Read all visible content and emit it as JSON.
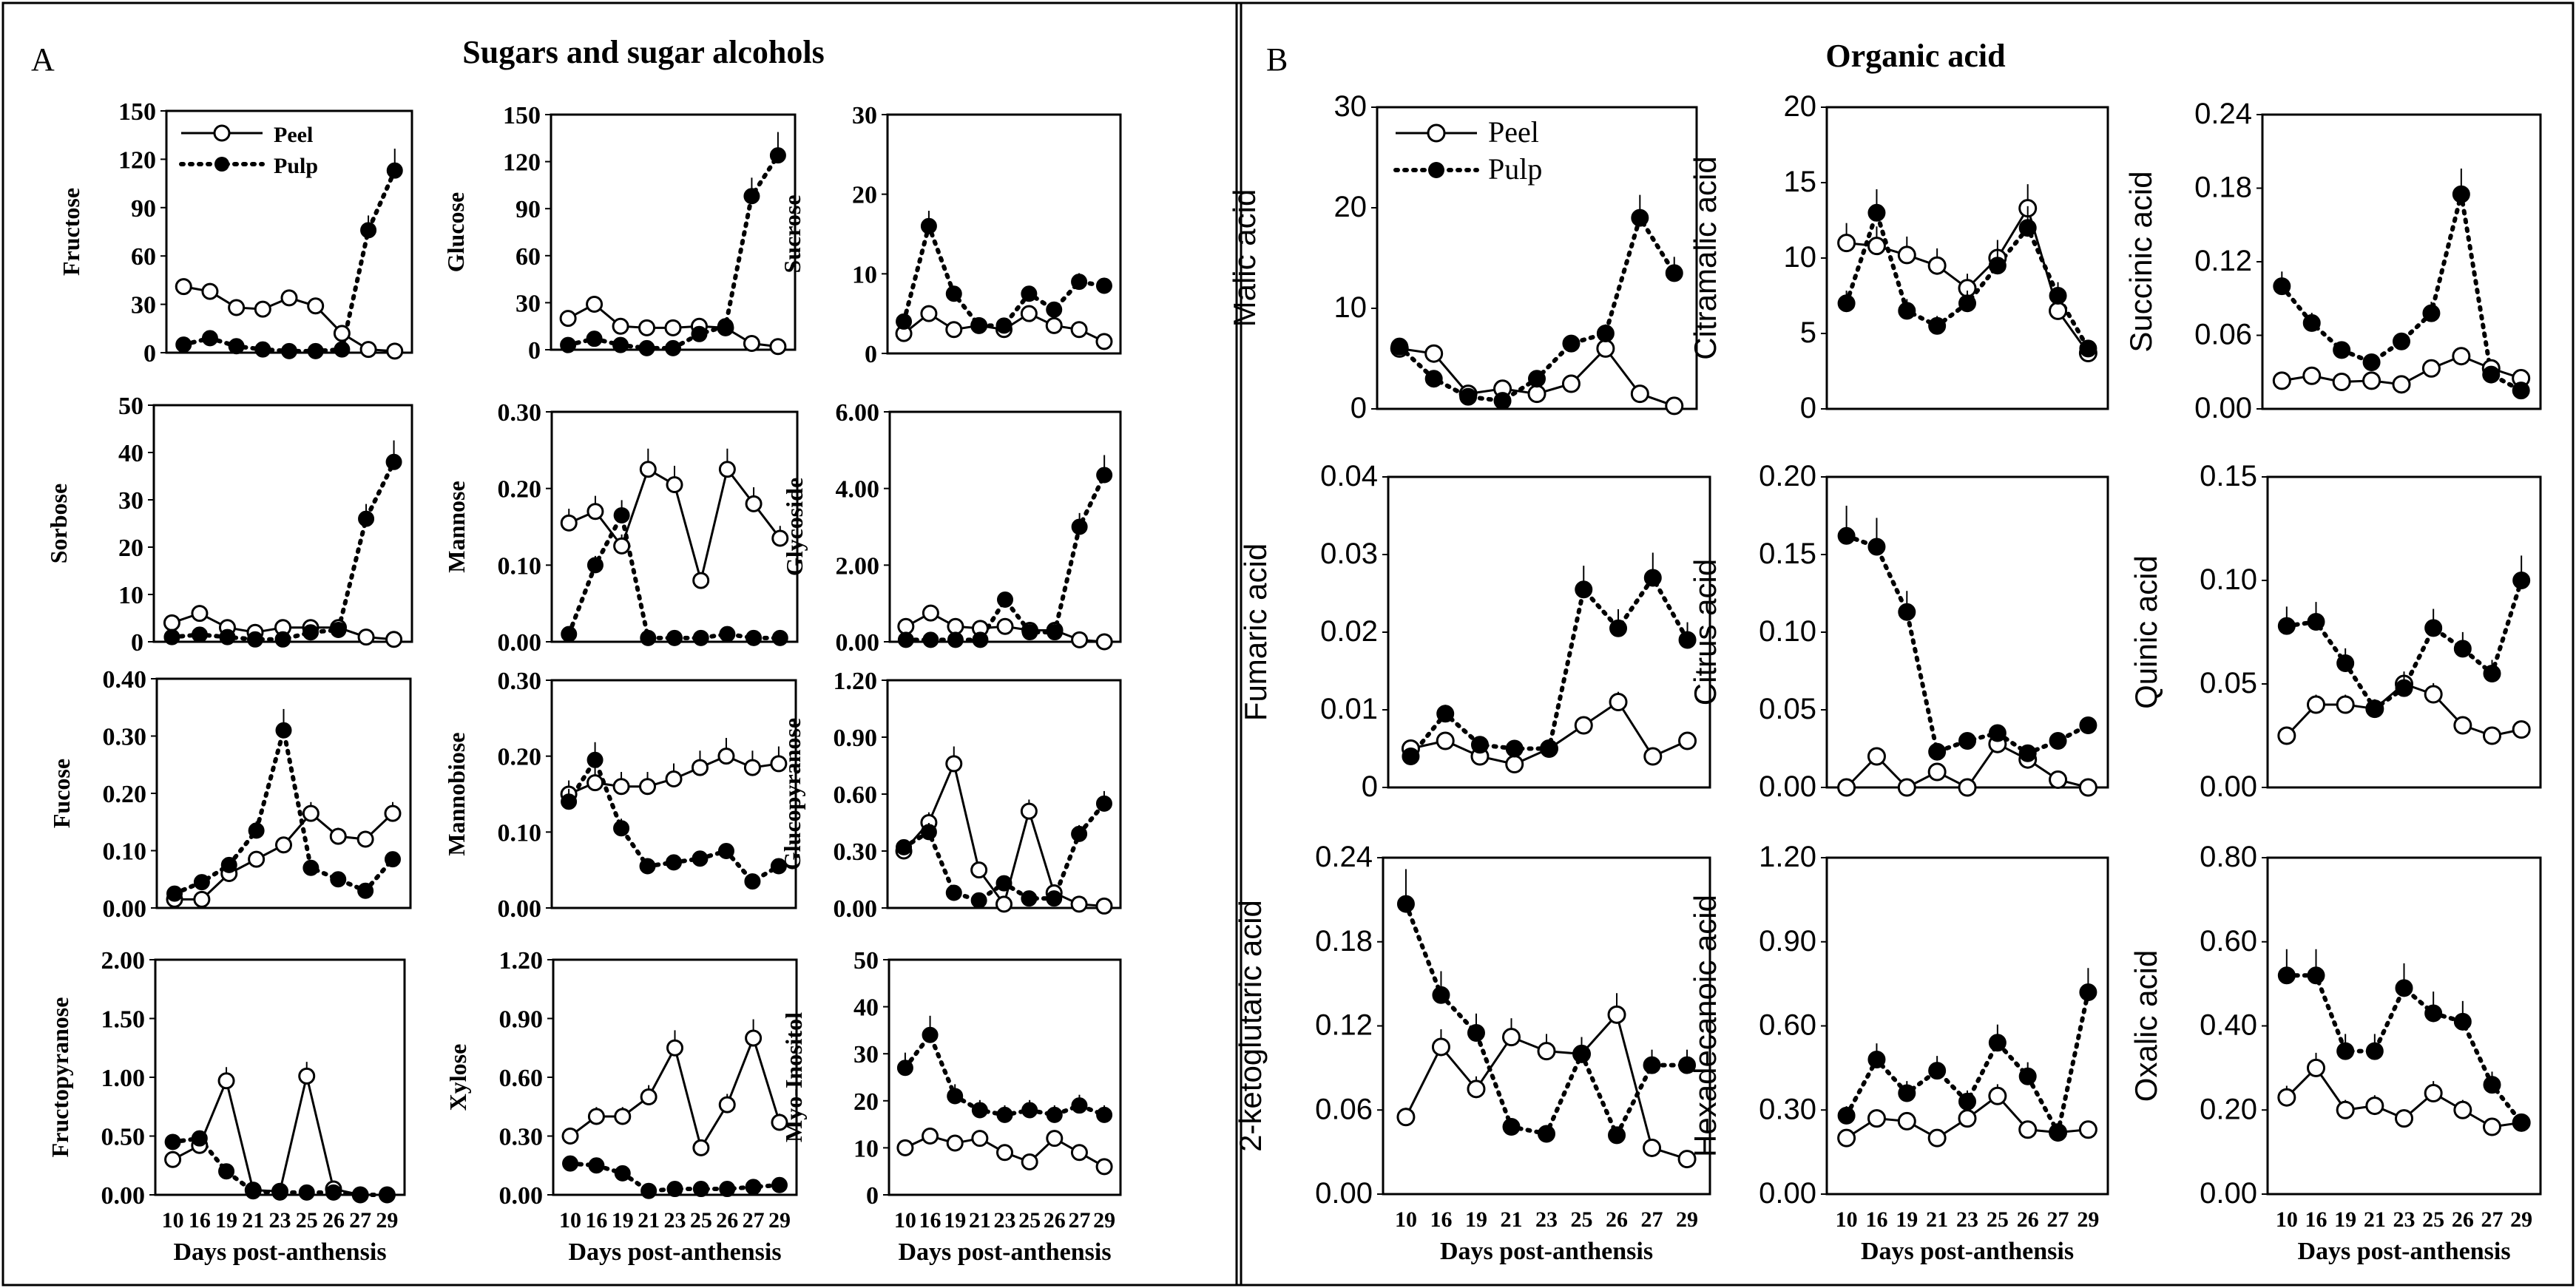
{
  "panels": [
    {
      "letter": "A",
      "title": "Sugars and sugar alcohols"
    },
    {
      "letter": "B",
      "title": "Organic acid"
    }
  ],
  "legend": {
    "series": [
      "Peel",
      "Pulp"
    ]
  },
  "xlabel": "Days post-anthensis",
  "colors": {
    "line": "#000000",
    "peel_fill": "#ffffff",
    "pulp_fill": "#000000"
  },
  "chart_data": [
    {
      "type": "line",
      "name": "Fructose",
      "ylabel": "Fructose",
      "panel": "A",
      "ylim": [
        0,
        150
      ],
      "yticks": [
        "0",
        "30",
        "60",
        "90",
        "120",
        "150"
      ],
      "categories": [
        "10",
        "16",
        "19",
        "21",
        "23",
        "25",
        "26",
        "27",
        "29"
      ],
      "series": [
        {
          "name": "Peel",
          "values": [
            41,
            38,
            28,
            27,
            34,
            29,
            12,
            2,
            1
          ],
          "err": [
            2,
            2,
            1,
            1,
            4,
            3,
            8,
            1,
            1
          ]
        },
        {
          "name": "Pulp",
          "values": [
            5,
            9,
            4,
            2,
            1,
            1,
            2,
            76,
            113
          ]
        }
      ],
      "pulp_err": [
        1,
        4,
        1,
        1,
        1,
        1,
        1,
        8,
        16
      ]
    },
    {
      "type": "line",
      "name": "Glucose",
      "ylabel": "Glucose",
      "panel": "A",
      "ylim": [
        0,
        150
      ],
      "yticks": [
        "0",
        "30",
        "60",
        "90",
        "120",
        "150"
      ],
      "categories": [
        "10",
        "16",
        "19",
        "21",
        "23",
        "25",
        "26",
        "27",
        "29"
      ],
      "series": [
        {
          "name": "Peel",
          "values": [
            20,
            29,
            15,
            14,
            14,
            15,
            14,
            4,
            2
          ]
        },
        {
          "name": "Pulp",
          "values": [
            3,
            7,
            3,
            1,
            1,
            10,
            15,
            98,
            124
          ]
        }
      ]
    },
    {
      "type": "line",
      "name": "Sucrose",
      "ylabel": "Sucrose",
      "panel": "A",
      "ylim": [
        0,
        30
      ],
      "yticks": [
        "0",
        "10",
        "20",
        "30"
      ],
      "categories": [
        "10",
        "16",
        "19",
        "21",
        "23",
        "25",
        "26",
        "27",
        "29"
      ],
      "series": [
        {
          "name": "Peel",
          "values": [
            2.5,
            5,
            3,
            3.5,
            3,
            5,
            3.5,
            3,
            1.5
          ]
        },
        {
          "name": "Pulp",
          "values": [
            4,
            16,
            7.5,
            3.5,
            3.5,
            7.5,
            5.5,
            9,
            8.5
          ]
        }
      ]
    },
    {
      "type": "line",
      "name": "Sorbose",
      "ylabel": "Sorbose",
      "panel": "A",
      "ylim": [
        0,
        50
      ],
      "yticks": [
        "0",
        "10",
        "20",
        "30",
        "40",
        "50"
      ],
      "categories": [
        "10",
        "16",
        "19",
        "21",
        "23",
        "25",
        "26",
        "27",
        "29"
      ],
      "series": [
        {
          "name": "Peel",
          "values": [
            4,
            6,
            3,
            2,
            3,
            3,
            3,
            1,
            0.5
          ]
        },
        {
          "name": "Pulp",
          "values": [
            1,
            1.5,
            1,
            0.5,
            0.5,
            2,
            2.5,
            26,
            38
          ]
        }
      ]
    },
    {
      "type": "line",
      "name": "Mannose",
      "ylabel": "Mannose",
      "panel": "A",
      "ylim": [
        0,
        0.3
      ],
      "yticks": [
        "0.00",
        "0.10",
        "0.20",
        "0.30"
      ],
      "categories": [
        "10",
        "16",
        "19",
        "21",
        "23",
        "25",
        "26",
        "27",
        "29"
      ],
      "series": [
        {
          "name": "Peel",
          "values": [
            0.155,
            0.17,
            0.125,
            0.225,
            0.205,
            0.08,
            0.225,
            0.18,
            0.135
          ]
        },
        {
          "name": "Pulp",
          "values": [
            0.01,
            0.1,
            0.165,
            0.005,
            0.005,
            0.005,
            0.01,
            0.005,
            0.005
          ]
        }
      ]
    },
    {
      "type": "line",
      "name": "Glycoside",
      "ylabel": "Glycoside",
      "panel": "A",
      "ylim": [
        0,
        6
      ],
      "yticks": [
        "0.00",
        "2.00",
        "4.00",
        "6.00"
      ],
      "categories": [
        "10",
        "16",
        "19",
        "21",
        "23",
        "25",
        "26",
        "27",
        "29"
      ],
      "series": [
        {
          "name": "Peel",
          "values": [
            0.4,
            0.75,
            0.4,
            0.35,
            0.4,
            0.3,
            0.3,
            0.05,
            0.0
          ]
        },
        {
          "name": "Pulp",
          "values": [
            0.05,
            0.05,
            0.05,
            0.05,
            1.1,
            0.25,
            0.25,
            3.0,
            4.35
          ]
        }
      ]
    },
    {
      "type": "line",
      "name": "Fucose",
      "ylabel": "Fucose",
      "panel": "A",
      "ylim": [
        0,
        0.4
      ],
      "yticks": [
        "0.00",
        "0.10",
        "0.20",
        "0.30",
        "0.40"
      ],
      "categories": [
        "10",
        "16",
        "19",
        "21",
        "23",
        "25",
        "26",
        "27",
        "29"
      ],
      "series": [
        {
          "name": "Peel",
          "values": [
            0.015,
            0.015,
            0.06,
            0.085,
            0.11,
            0.165,
            0.125,
            0.12,
            0.165
          ]
        },
        {
          "name": "Pulp",
          "values": [
            0.025,
            0.045,
            0.075,
            0.135,
            0.31,
            0.07,
            0.05,
            0.03,
            0.085
          ]
        }
      ]
    },
    {
      "type": "line",
      "name": "Mannobiose",
      "ylabel": "Mannobiose",
      "panel": "A",
      "ylim": [
        0,
        0.3
      ],
      "yticks": [
        "0.00",
        "0.10",
        "0.20",
        "0.30"
      ],
      "categories": [
        "10",
        "16",
        "19",
        "21",
        "23",
        "25",
        "26",
        "27",
        "29"
      ],
      "series": [
        {
          "name": "Peel",
          "values": [
            0.15,
            0.165,
            0.16,
            0.16,
            0.17,
            0.185,
            0.2,
            0.185,
            0.19
          ]
        },
        {
          "name": "Pulp",
          "values": [
            0.14,
            0.195,
            0.105,
            0.055,
            0.06,
            0.065,
            0.075,
            0.035,
            0.055
          ]
        }
      ]
    },
    {
      "type": "line",
      "name": "Glucopyranose",
      "ylabel": "Glucopyranose",
      "panel": "A",
      "ylim": [
        0,
        1.2
      ],
      "yticks": [
        "0.00",
        "0.30",
        "0.60",
        "0.90",
        "1.20"
      ],
      "categories": [
        "10",
        "16",
        "19",
        "21",
        "23",
        "25",
        "26",
        "27",
        "29"
      ],
      "series": [
        {
          "name": "Peel",
          "values": [
            0.3,
            0.45,
            0.76,
            0.2,
            0.02,
            0.51,
            0.08,
            0.02,
            0.01
          ]
        },
        {
          "name": "Pulp",
          "values": [
            0.32,
            0.4,
            0.08,
            0.04,
            0.13,
            0.05,
            0.05,
            0.39,
            0.55
          ]
        }
      ]
    },
    {
      "type": "line",
      "name": "Fructopyranose",
      "ylabel": "Fructopyranose",
      "panel": "A",
      "ylim": [
        0,
        2
      ],
      "yticks": [
        "0.00",
        "0.50",
        "1.00",
        "1.50",
        "2.00"
      ],
      "categories": [
        "10",
        "16",
        "19",
        "21",
        "23",
        "25",
        "26",
        "27",
        "29"
      ],
      "series": [
        {
          "name": "Peel",
          "values": [
            0.3,
            0.42,
            0.97,
            0.04,
            0.03,
            1.01,
            0.05,
            0.0,
            0.0
          ]
        },
        {
          "name": "Pulp",
          "values": [
            0.45,
            0.48,
            0.2,
            0.03,
            0.02,
            0.02,
            0.02,
            0.0,
            0.0
          ]
        }
      ]
    },
    {
      "type": "line",
      "name": "Xylose",
      "ylabel": "Xylose",
      "panel": "A",
      "ylim": [
        0,
        1.2
      ],
      "yticks": [
        "0.00",
        "0.30",
        "0.60",
        "0.90",
        "1.20"
      ],
      "categories": [
        "10",
        "16",
        "19",
        "21",
        "23",
        "25",
        "26",
        "27",
        "29"
      ],
      "series": [
        {
          "name": "Peel",
          "values": [
            0.3,
            0.4,
            0.4,
            0.5,
            0.75,
            0.24,
            0.46,
            0.8,
            0.37
          ]
        },
        {
          "name": "Pulp",
          "values": [
            0.16,
            0.15,
            0.11,
            0.02,
            0.03,
            0.03,
            0.03,
            0.04,
            0.05
          ]
        }
      ]
    },
    {
      "type": "line",
      "name": "Myo-Inositol",
      "ylabel": "Myo-Inositol",
      "panel": "A",
      "ylim": [
        0,
        50
      ],
      "yticks": [
        "0",
        "10",
        "20",
        "30",
        "40",
        "50"
      ],
      "categories": [
        "10",
        "16",
        "19",
        "21",
        "23",
        "25",
        "26",
        "27",
        "29"
      ],
      "series": [
        {
          "name": "Peel",
          "values": [
            10,
            12.5,
            11,
            12,
            9,
            7,
            12,
            9,
            6
          ]
        },
        {
          "name": "Pulp",
          "values": [
            27,
            34,
            21,
            18,
            17,
            18,
            17,
            19,
            17
          ]
        }
      ]
    },
    {
      "type": "line",
      "name": "Malic acid",
      "ylabel": "Malic acid",
      "panel": "B",
      "ylim": [
        0,
        30
      ],
      "yticks": [
        "0",
        "10",
        "20",
        "30"
      ],
      "categories": [
        "10",
        "16",
        "19",
        "21",
        "23",
        "25",
        "26",
        "27",
        "29"
      ],
      "series": [
        {
          "name": "Peel",
          "values": [
            6,
            5.5,
            1.5,
            2,
            1.5,
            2.5,
            6,
            1.5,
            0.3
          ]
        },
        {
          "name": "Pulp",
          "values": [
            6.2,
            3,
            1.2,
            0.8,
            3,
            6.5,
            7.5,
            19,
            13.5
          ]
        }
      ]
    },
    {
      "type": "line",
      "name": "Citramalic acid",
      "ylabel": "Citramalic acid",
      "panel": "B",
      "ylim": [
        0,
        20
      ],
      "yticks": [
        "0",
        "5",
        "10",
        "15",
        "20"
      ],
      "categories": [
        "10",
        "16",
        "19",
        "21",
        "23",
        "25",
        "26",
        "27",
        "29"
      ],
      "series": [
        {
          "name": "Peel",
          "values": [
            11,
            10.8,
            10.2,
            9.5,
            8,
            10,
            13.3,
            6.5,
            3.7
          ]
        },
        {
          "name": "Pulp",
          "values": [
            7,
            13,
            6.5,
            5.5,
            7,
            9.5,
            12,
            7.5,
            4
          ]
        }
      ]
    },
    {
      "type": "line",
      "name": "Succinic acid",
      "ylabel": "Succinic acid",
      "panel": "B",
      "ylim": [
        0,
        0.24
      ],
      "yticks": [
        "0.00",
        "0.06",
        "0.12",
        "0.18",
        "0.24"
      ],
      "categories": [
        "10",
        "16",
        "19",
        "21",
        "23",
        "25",
        "26",
        "27",
        "29"
      ],
      "series": [
        {
          "name": "Peel",
          "values": [
            0.023,
            0.027,
            0.022,
            0.023,
            0.02,
            0.033,
            0.043,
            0.033,
            0.025
          ]
        },
        {
          "name": "Pulp",
          "values": [
            0.1,
            0.07,
            0.048,
            0.038,
            0.055,
            0.078,
            0.175,
            0.028,
            0.015
          ]
        }
      ]
    },
    {
      "type": "line",
      "name": "Fumaric acid",
      "ylabel": "Fumaric  acid",
      "panel": "B",
      "ylim": [
        0,
        0.04
      ],
      "yticks": [
        "0",
        "0.01",
        "0.02",
        "0.03",
        "0.04"
      ],
      "categories": [
        "10",
        "16",
        "19",
        "21",
        "23",
        "25",
        "26",
        "27",
        "29"
      ],
      "series": [
        {
          "name": "Peel",
          "values": [
            0.005,
            0.006,
            0.004,
            0.003,
            0.005,
            0.008,
            0.011,
            0.004,
            0.006
          ]
        },
        {
          "name": "Pulp",
          "values": [
            0.004,
            0.0095,
            0.0055,
            0.005,
            0.005,
            0.0255,
            0.0205,
            0.027,
            0.019
          ]
        }
      ]
    },
    {
      "type": "line",
      "name": "Citrus acid",
      "ylabel": "Citrus  acid",
      "panel": "B",
      "ylim": [
        0,
        0.2
      ],
      "yticks": [
        "0.00",
        "0.05",
        "0.10",
        "0.15",
        "0.20"
      ],
      "categories": [
        "10",
        "16",
        "19",
        "21",
        "23",
        "25",
        "26",
        "27",
        "29"
      ],
      "series": [
        {
          "name": "Peel",
          "values": [
            0.0,
            0.02,
            0.0,
            0.01,
            0.0,
            0.028,
            0.018,
            0.005,
            0.0
          ]
        },
        {
          "name": "Pulp",
          "values": [
            0.162,
            0.155,
            0.113,
            0.023,
            0.03,
            0.035,
            0.022,
            0.03,
            0.04
          ]
        }
      ]
    },
    {
      "type": "line",
      "name": "Quinic acid",
      "ylabel": "Quinic  acid",
      "panel": "B",
      "ylim": [
        0,
        0.15
      ],
      "yticks": [
        "0.00",
        "0.05",
        "0.10",
        "0.15"
      ],
      "categories": [
        "10",
        "16",
        "19",
        "21",
        "23",
        "25",
        "26",
        "27",
        "29"
      ],
      "series": [
        {
          "name": "Peel",
          "values": [
            0.025,
            0.04,
            0.04,
            0.038,
            0.05,
            0.045,
            0.03,
            0.025,
            0.028
          ]
        },
        {
          "name": "Pulp",
          "values": [
            0.078,
            0.08,
            0.06,
            0.038,
            0.048,
            0.077,
            0.067,
            0.055,
            0.1
          ]
        }
      ]
    },
    {
      "type": "line",
      "name": "2-ketoglutaric acid",
      "ylabel": "2-ketoglutaric acid",
      "panel": "B",
      "ylim": [
        0,
        0.24
      ],
      "yticks": [
        "0.00",
        "0.06",
        "0.12",
        "0.18",
        "0.24"
      ],
      "categories": [
        "10",
        "16",
        "19",
        "21",
        "23",
        "25",
        "26",
        "27",
        "29"
      ],
      "series": [
        {
          "name": "Peel",
          "values": [
            0.055,
            0.105,
            0.075,
            0.112,
            0.102,
            0.1,
            0.128,
            0.033,
            0.025
          ]
        },
        {
          "name": "Pulp",
          "values": [
            0.207,
            0.142,
            0.115,
            0.048,
            0.043,
            0.1,
            0.042,
            0.092,
            0.092
          ]
        }
      ]
    },
    {
      "type": "line",
      "name": "Hexadecanoic acid",
      "ylabel": "Hexadecanoic  acid",
      "panel": "B",
      "ylim": [
        0,
        1.2
      ],
      "yticks": [
        "0.00",
        "0.30",
        "0.60",
        "0.90",
        "1.20"
      ],
      "categories": [
        "10",
        "16",
        "19",
        "21",
        "23",
        "25",
        "26",
        "27",
        "29"
      ],
      "series": [
        {
          "name": "Peel",
          "values": [
            0.2,
            0.27,
            0.26,
            0.2,
            0.27,
            0.35,
            0.23,
            0.22,
            0.23
          ]
        },
        {
          "name": "Pulp",
          "values": [
            0.28,
            0.48,
            0.36,
            0.44,
            0.33,
            0.54,
            0.42,
            0.22,
            0.72
          ]
        }
      ]
    },
    {
      "type": "line",
      "name": "Oxalic acid",
      "ylabel": "Oxalic  acid",
      "panel": "B",
      "ylim": [
        0,
        0.8
      ],
      "yticks": [
        "0.00",
        "0.20",
        "0.40",
        "0.60",
        "0.80"
      ],
      "categories": [
        "10",
        "16",
        "19",
        "21",
        "23",
        "25",
        "26",
        "27",
        "29"
      ],
      "series": [
        {
          "name": "Peel",
          "values": [
            0.23,
            0.3,
            0.2,
            0.21,
            0.18,
            0.24,
            0.2,
            0.16,
            0.17
          ]
        },
        {
          "name": "Pulp",
          "values": [
            0.52,
            0.52,
            0.34,
            0.34,
            0.49,
            0.43,
            0.41,
            0.26,
            0.17
          ]
        }
      ]
    }
  ]
}
